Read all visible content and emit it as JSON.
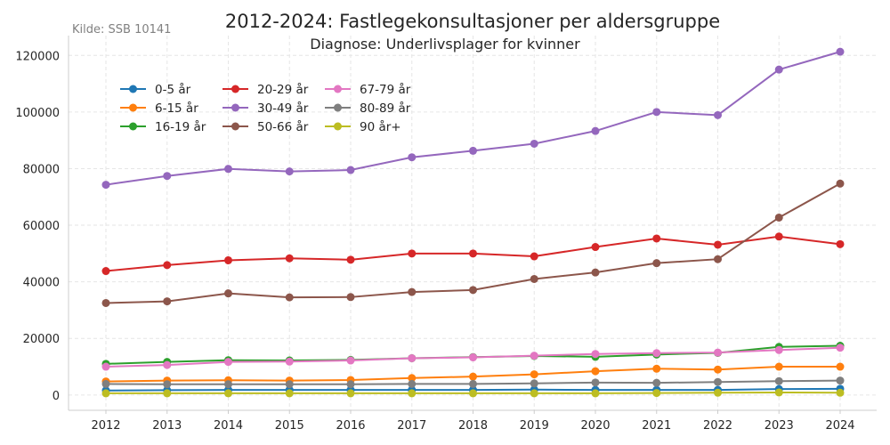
{
  "chart_data": {
    "type": "line",
    "title": "2012-2024: Fastlegekonsultasjoner per aldersgruppe",
    "subtitle": "Diagnose: Underlivsplager for kvinner",
    "source_note": "Kilde: SSB 10141",
    "xlabel": "",
    "ylabel": "",
    "x": [
      2012,
      2013,
      2014,
      2015,
      2016,
      2017,
      2018,
      2019,
      2020,
      2021,
      2022,
      2023,
      2024
    ],
    "ylim": [
      -5400,
      127000
    ],
    "yticks": [
      0,
      20000,
      40000,
      60000,
      80000,
      100000,
      120000
    ],
    "grid": true,
    "legend_placement": "upper-left",
    "series": [
      {
        "name": "0-5 år",
        "color": "#1f77b4",
        "values": [
          1600,
          1700,
          1800,
          1800,
          1800,
          1800,
          1800,
          1900,
          1800,
          1800,
          1800,
          2100,
          2200
        ]
      },
      {
        "name": "6-15 år",
        "color": "#ff7f0e",
        "values": [
          4800,
          5100,
          5200,
          5100,
          5300,
          6000,
          6500,
          7300,
          8400,
          9300,
          9000,
          10000,
          10000
        ]
      },
      {
        "name": "16-19 år",
        "color": "#2ca02c",
        "values": [
          11000,
          11700,
          12300,
          12200,
          12400,
          13000,
          13400,
          13800,
          13500,
          14300,
          14900,
          17000,
          17400
        ]
      },
      {
        "name": "20-29 år",
        "color": "#d62728",
        "values": [
          43800,
          45900,
          47600,
          48300,
          47800,
          50000,
          50000,
          49000,
          52300,
          55300,
          53100,
          56000,
          53300
        ]
      },
      {
        "name": "30-49 år",
        "color": "#9467bd",
        "values": [
          74300,
          77400,
          79900,
          79000,
          79500,
          84000,
          86300,
          88800,
          93300,
          100000,
          98900,
          115000,
          121300
        ]
      },
      {
        "name": "50-66 år",
        "color": "#8c564b",
        "values": [
          32500,
          33100,
          35900,
          34500,
          34600,
          36400,
          37100,
          41000,
          43300,
          46600,
          48000,
          62700,
          74700
        ]
      },
      {
        "name": "67-79 år",
        "color": "#e377c2",
        "values": [
          10000,
          10600,
          11700,
          11800,
          12200,
          13000,
          13300,
          13900,
          14500,
          14800,
          15000,
          15900,
          16700
        ]
      },
      {
        "name": "80-89 år",
        "color": "#7f7f7f",
        "values": [
          3900,
          3800,
          3800,
          3800,
          3800,
          3900,
          3900,
          4100,
          4400,
          4300,
          4600,
          4900,
          5100
        ]
      },
      {
        "name": "90 år+",
        "color": "#bcbd22",
        "values": [
          600,
          600,
          600,
          600,
          600,
          600,
          600,
          600,
          600,
          700,
          800,
          900,
          800
        ]
      }
    ]
  }
}
